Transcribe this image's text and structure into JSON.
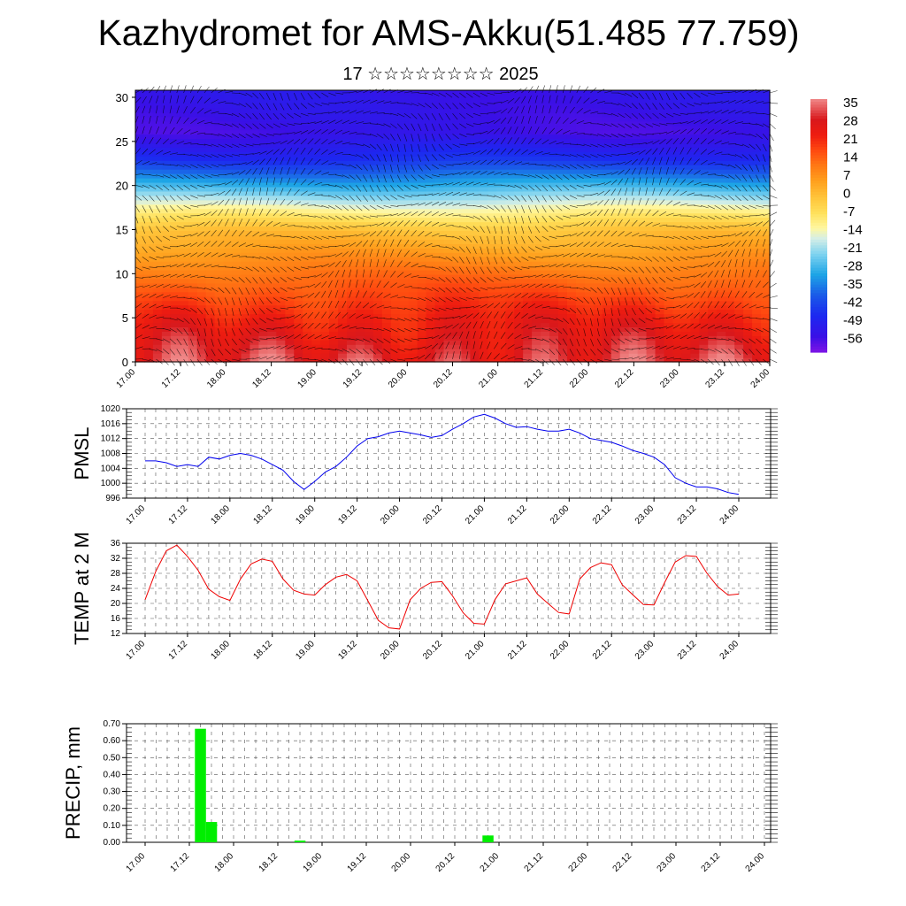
{
  "title": "Kazhydromet for AMS-Akku(51.485 77.759)",
  "subtitle": "17 ☆☆☆☆☆☆☆☆ 2025",
  "colors": {
    "pmsl_line": "#0000ee",
    "temp_line": "#ee0000",
    "precip_bar": "#00ee00"
  },
  "chart_data": [
    {
      "type": "heatmap",
      "name": "cross-section",
      "x_tick_labels": [
        "17.00",
        "17.12",
        "18.00",
        "18.12",
        "19.00",
        "19.12",
        "20.00",
        "20.12",
        "21.00",
        "21.12",
        "22.00",
        "22.12",
        "23.00",
        "23.12",
        "24.00"
      ],
      "yticks": [
        0,
        5,
        10,
        15,
        20,
        25,
        30
      ],
      "ylim": [
        0,
        30.8
      ],
      "overlay": "wind vectors",
      "colorbar_labels": [
        "35",
        "28",
        "21",
        "14",
        "7",
        "0",
        "-7",
        "-14",
        "-21",
        "-28",
        "-35",
        "-42",
        "-49",
        "-56"
      ],
      "colorbar_range": [
        -60,
        38
      ],
      "profile_description_values": {
        "z": [
          0,
          5,
          10,
          15,
          17,
          20,
          23,
          26,
          30
        ],
        "t": [
          32,
          24,
          13,
          0,
          -10,
          -28,
          -45,
          -54,
          -52
        ]
      }
    },
    {
      "type": "line",
      "ylabel": "PMSL",
      "ylim": [
        996,
        1020
      ],
      "yticks": [
        "1020",
        "1016",
        "1012",
        "1008",
        "1004",
        "1000",
        "996"
      ],
      "x_tick_labels": [
        "17.00",
        "17.12",
        "18.00",
        "18.12",
        "19.00",
        "19.12",
        "20.00",
        "20.12",
        "21.00",
        "21.12",
        "22.00",
        "22.12",
        "23.00",
        "23.12",
        "24.00"
      ],
      "x": [
        0,
        3,
        6,
        9,
        12,
        15,
        18,
        21,
        24,
        27,
        30,
        33,
        36,
        39,
        42,
        45,
        48,
        51,
        54,
        57,
        60,
        63,
        66,
        69,
        72,
        75,
        78,
        81,
        84,
        87,
        90,
        93,
        96,
        99,
        102,
        105,
        108,
        111,
        114,
        117,
        120,
        123,
        126,
        129,
        132,
        135,
        138,
        141,
        144,
        147,
        150,
        153,
        156,
        159,
        162,
        165,
        168
      ],
      "values": [
        1006,
        1006,
        1005.5,
        1004.5,
        1005,
        1004.5,
        1007,
        1006.5,
        1007.5,
        1008,
        1007.5,
        1006.5,
        1005,
        1003.5,
        1000.5,
        998.3,
        1000.5,
        1003,
        1004.5,
        1007,
        1010,
        1012,
        1012.5,
        1013.5,
        1014,
        1013.5,
        1013,
        1012.3,
        1012.8,
        1014.5,
        1016,
        1017.8,
        1018.5,
        1017.5,
        1016,
        1015,
        1015.2,
        1014.5,
        1014,
        1014,
        1014.5,
        1013.5,
        1012,
        1011.5,
        1011,
        1010,
        1008.8,
        1008,
        1007,
        1005,
        1001.5,
        1000,
        999,
        999,
        998.5,
        997.5,
        997
      ]
    },
    {
      "type": "line",
      "ylabel": "TEMP at 2 M",
      "ylim": [
        12,
        36
      ],
      "yticks": [
        "36",
        "32",
        "28",
        "24",
        "20",
        "16",
        "12"
      ],
      "x_tick_labels": [
        "17.00",
        "17.12",
        "18.00",
        "18.12",
        "19.00",
        "19.12",
        "20.00",
        "20.12",
        "21.00",
        "21.12",
        "22.00",
        "22.12",
        "23.00",
        "23.12",
        "24.00"
      ],
      "x": [
        0,
        3,
        6,
        9,
        12,
        15,
        18,
        21,
        24,
        27,
        30,
        33,
        36,
        39,
        42,
        45,
        48,
        51,
        54,
        57,
        60,
        63,
        66,
        69,
        72,
        75,
        78,
        81,
        84,
        87,
        90,
        93,
        96,
        99,
        102,
        105,
        108,
        111,
        114,
        117,
        120,
        123,
        126,
        129,
        132,
        135,
        138,
        141,
        144,
        147,
        150,
        153,
        156,
        159,
        162,
        165,
        168
      ],
      "values": [
        21,
        28.5,
        34,
        35.5,
        32.5,
        28.8,
        23.8,
        21.8,
        20.8,
        26.5,
        30.5,
        31.8,
        31.2,
        26.5,
        23.5,
        22.5,
        22.2,
        25,
        27,
        27.7,
        26,
        20.8,
        15.5,
        13.5,
        13.2,
        21,
        24,
        25.6,
        25.8,
        22,
        17.5,
        14.7,
        14.5,
        21,
        25.2,
        26,
        26.8,
        22.5,
        20,
        17.6,
        17.2,
        26.5,
        29.5,
        30.8,
        30.3,
        25,
        22.3,
        19.7,
        19.6,
        25.5,
        31,
        32.7,
        32.5,
        28,
        24.5,
        22.2,
        22.5
      ]
    },
    {
      "type": "bar",
      "ylabel": "PRECIP, mm",
      "ylim": [
        0,
        0.7
      ],
      "yticks": [
        "0.70",
        "0.60",
        "0.50",
        "0.40",
        "0.30",
        "0.20",
        "0.10",
        "0.00"
      ],
      "x_tick_labels": [
        "17.00",
        "17.12",
        "18.00",
        "18.12",
        "19.00",
        "19.12",
        "20.00",
        "20.12",
        "21.00",
        "21.12",
        "22.00",
        "22.12",
        "23.00",
        "23.12",
        "24.00"
      ],
      "x": [
        15,
        18,
        42,
        93
      ],
      "values": [
        0.67,
        0.12,
        0.01,
        0.04
      ]
    }
  ]
}
